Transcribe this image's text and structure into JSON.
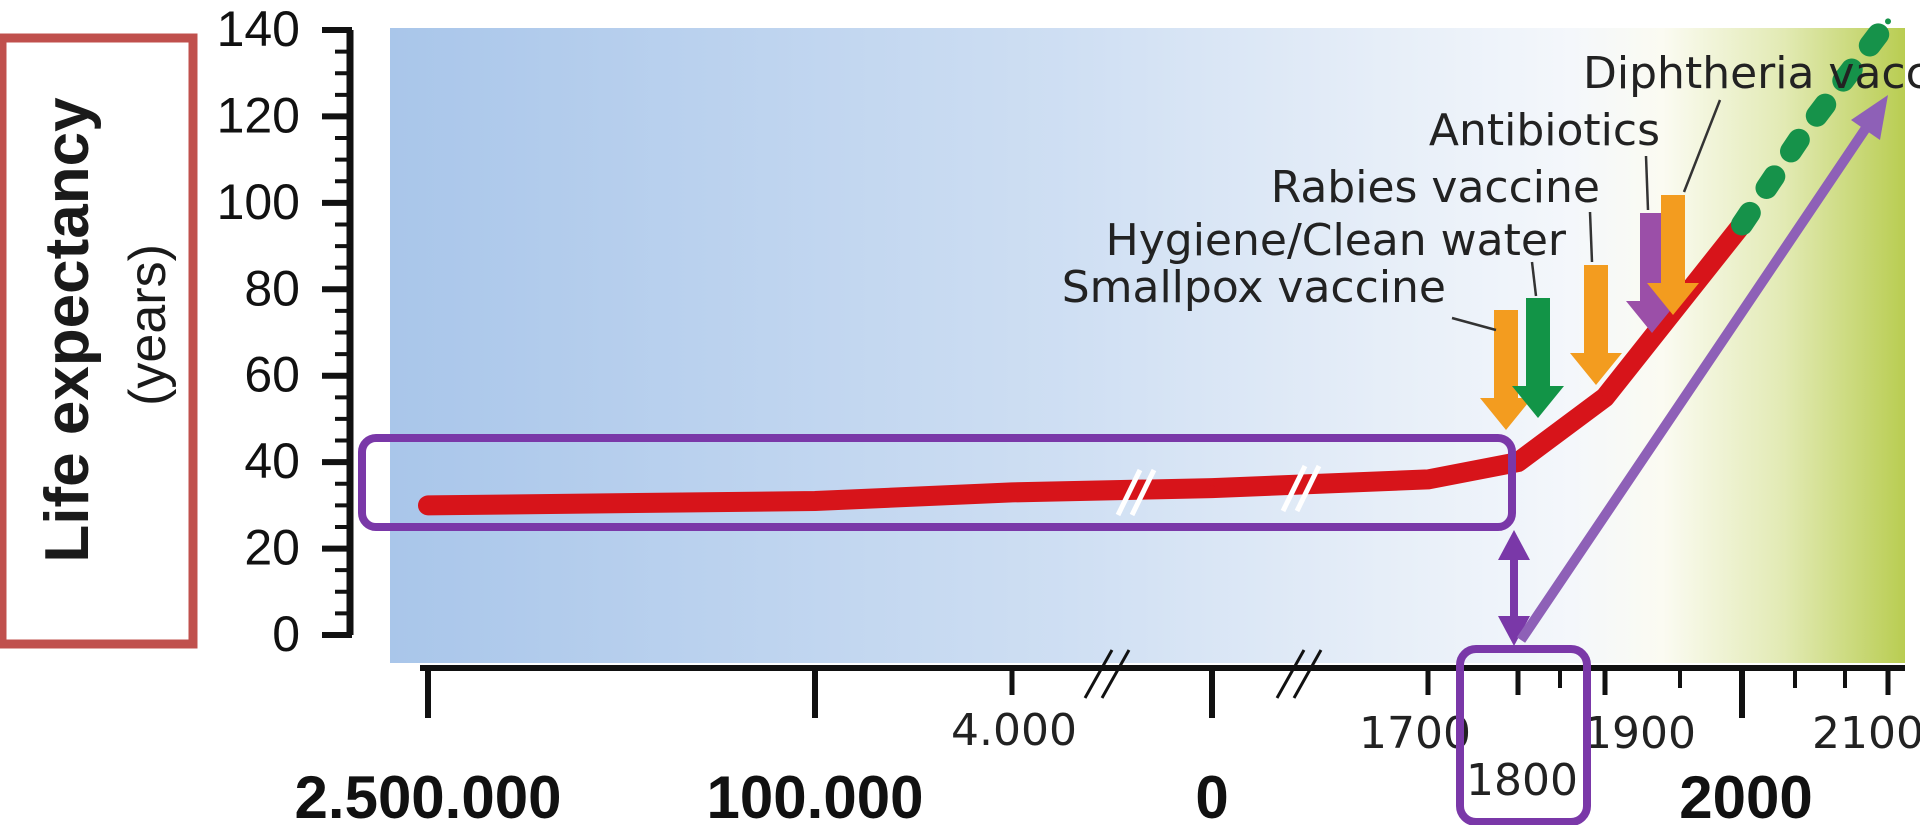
{
  "chart_data": {
    "type": "line",
    "ylabel": "Life expectancy",
    "ylabel_unit": "(years)",
    "ylim": [
      0,
      140
    ],
    "y_ticks": [
      "0",
      "20",
      "40",
      "60",
      "80",
      "100",
      "120",
      "140"
    ],
    "x_ticks_major": [
      "2.500.000",
      "100.000",
      "0",
      "2000"
    ],
    "x_ticks_minor": [
      "4.000",
      "1700",
      "1800",
      "1900",
      "2100"
    ],
    "series": [
      {
        "style": "solid",
        "color": "#d7141a",
        "x": [
          "2.500.000",
          "100.000",
          "4.000",
          "0",
          "1700",
          "1800",
          "1900",
          "2000"
        ],
        "y": [
          30,
          31,
          33,
          34,
          36,
          40,
          55,
          95
        ]
      },
      {
        "style": "dotted",
        "color": "#16924a",
        "x": [
          "2000",
          "2050",
          "2100"
        ],
        "y": [
          95,
          115,
          142
        ]
      }
    ],
    "annotations": [
      {
        "text": "Smallpox vaccine",
        "color": "#f39c1f"
      },
      {
        "text": "Hygiene/Clean water",
        "color": "#129447"
      },
      {
        "text": "Rabies vaccine",
        "color": "#f39c1f"
      },
      {
        "text": "Antibiotics",
        "color": "#9b4fa8"
      },
      {
        "text": "Diphtheria vaccine",
        "color": "#f39c1f"
      }
    ],
    "highlight_color": "#7a38a8",
    "frame_color": "#c0504d",
    "grid": false
  }
}
